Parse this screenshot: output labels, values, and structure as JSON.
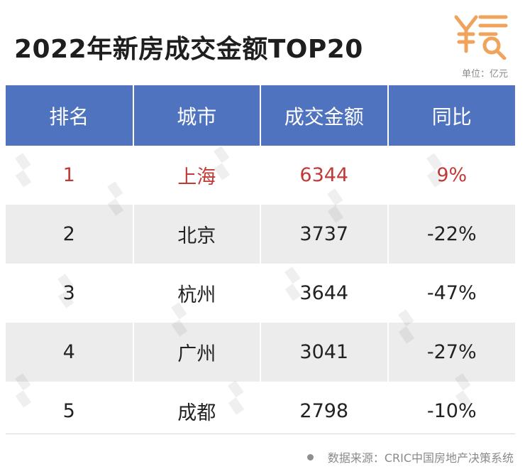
{
  "header": {
    "title": "2022年新房成交金额TOP20",
    "unit_note": "单位：亿元",
    "logo_icon": "yuan-search-icon",
    "logo_color": "#f0a35a"
  },
  "table": {
    "columns": [
      "排名",
      "城市",
      "成交金额",
      "同比"
    ],
    "rows": [
      {
        "rank": "1",
        "city": "上海",
        "amount": "6344",
        "yoy": "9%"
      },
      {
        "rank": "2",
        "city": "北京",
        "amount": "3737",
        "yoy": "-22%"
      },
      {
        "rank": "3",
        "city": "杭州",
        "amount": "3644",
        "yoy": "-47%"
      },
      {
        "rank": "4",
        "city": "广州",
        "amount": "3041",
        "yoy": "-27%"
      },
      {
        "rank": "5",
        "city": "成都",
        "amount": "2798",
        "yoy": "-10%"
      }
    ]
  },
  "footer": {
    "source": "数据来源：CRIC中国房地产决策系统"
  },
  "colors": {
    "header_bg": "#4f73be",
    "highlight_text": "#c23a38",
    "stripe_bg": "#ececec"
  },
  "chart_data": {
    "type": "table",
    "title": "2022年新房成交金额TOP20",
    "unit": "单位：亿元",
    "columns": [
      "排名",
      "城市",
      "成交金额",
      "同比"
    ],
    "rows": [
      [
        "1",
        "上海",
        6344,
        "9%"
      ],
      [
        "2",
        "北京",
        3737,
        "-22%"
      ],
      [
        "3",
        "杭州",
        3644,
        "-47%"
      ],
      [
        "4",
        "广州",
        3041,
        "-27%"
      ],
      [
        "5",
        "成都",
        2798,
        "-10%"
      ]
    ]
  }
}
